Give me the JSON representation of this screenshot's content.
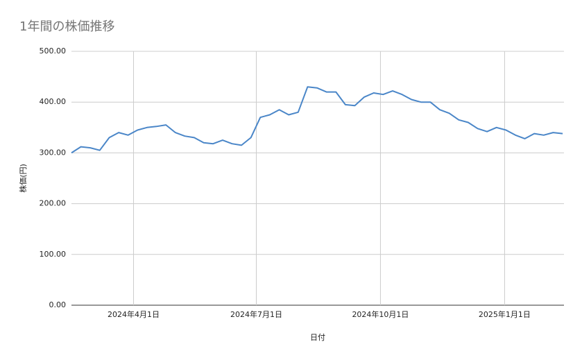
{
  "chart_data": {
    "type": "line",
    "title": "1年間の株価推移",
    "x_label": "日付",
    "y_label": "株価(円)",
    "x": [
      "2024-02-15",
      "2024-02-22",
      "2024-02-29",
      "2024-03-07",
      "2024-03-14",
      "2024-03-21",
      "2024-03-28",
      "2024-04-04",
      "2024-04-11",
      "2024-04-18",
      "2024-04-25",
      "2024-05-02",
      "2024-05-09",
      "2024-05-16",
      "2024-05-23",
      "2024-05-30",
      "2024-06-06",
      "2024-06-13",
      "2024-06-20",
      "2024-06-27",
      "2024-07-04",
      "2024-07-11",
      "2024-07-18",
      "2024-07-25",
      "2024-08-01",
      "2024-08-08",
      "2024-08-15",
      "2024-08-22",
      "2024-08-29",
      "2024-09-05",
      "2024-09-12",
      "2024-09-19",
      "2024-09-26",
      "2024-10-03",
      "2024-10-10",
      "2024-10-17",
      "2024-10-24",
      "2024-10-31",
      "2024-11-07",
      "2024-11-14",
      "2024-11-21",
      "2024-11-28",
      "2024-12-05",
      "2024-12-12",
      "2024-12-19",
      "2024-12-26",
      "2025-01-02",
      "2025-01-09",
      "2025-01-16",
      "2025-01-23",
      "2025-01-30",
      "2025-02-06",
      "2025-02-13"
    ],
    "series": [
      {
        "name": "株価",
        "color": "#4a86c8",
        "values": [
          300,
          312,
          310,
          305,
          330,
          340,
          335,
          345,
          350,
          352,
          355,
          340,
          333,
          330,
          320,
          318,
          325,
          318,
          315,
          330,
          370,
          375,
          385,
          375,
          380,
          430,
          428,
          420,
          420,
          395,
          393,
          410,
          418,
          415,
          422,
          415,
          405,
          400,
          400,
          385,
          378,
          365,
          360,
          348,
          342,
          350,
          345,
          335,
          328,
          338,
          335,
          340,
          338
        ]
      }
    ],
    "xlim": [
      "2024-02-15",
      "2025-02-14"
    ],
    "xticks": [
      {
        "value": "2024-04-01",
        "label": "2024年4月1日"
      },
      {
        "value": "2024-07-01",
        "label": "2024年7月1日"
      },
      {
        "value": "2024-10-01",
        "label": "2024年10月1日"
      },
      {
        "value": "2025-01-01",
        "label": "2025年1月1日"
      }
    ],
    "ylim": [
      0,
      500
    ],
    "yticks": [
      {
        "value": 0,
        "label": "0.00"
      },
      {
        "value": 100,
        "label": "100.00"
      },
      {
        "value": 200,
        "label": "200.00"
      },
      {
        "value": 300,
        "label": "300.00"
      },
      {
        "value": 400,
        "label": "400.00"
      },
      {
        "value": 500,
        "label": "500.00"
      }
    ],
    "grid": true
  }
}
